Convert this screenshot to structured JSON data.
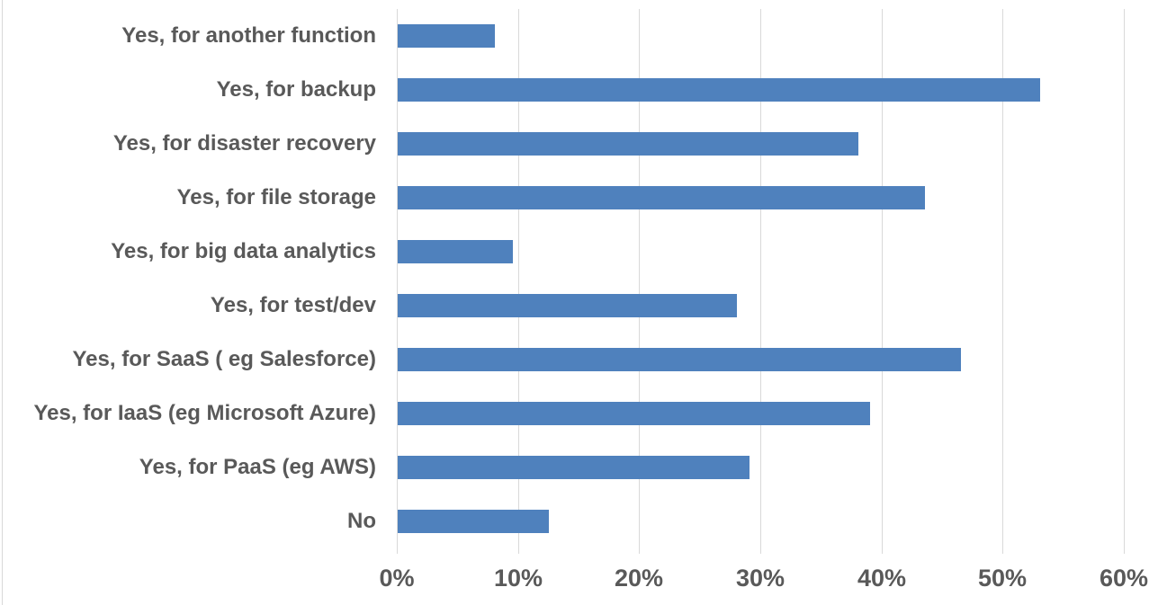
{
  "chart_data": {
    "type": "bar",
    "orientation": "horizontal",
    "title": "",
    "xlabel": "",
    "ylabel": "",
    "categories": [
      "Yes, for another function",
      "Yes, for backup",
      "Yes, for disaster recovery",
      "Yes, for file storage",
      "Yes, for big data analytics",
      "Yes, for test/dev",
      "Yes, for SaaS ( eg Salesforce)",
      "Yes, for IaaS (eg Microsoft Azure)",
      "Yes, for PaaS (eg AWS)",
      "No"
    ],
    "values": [
      8,
      53,
      38,
      43.5,
      9.5,
      28,
      46.5,
      39,
      29,
      12.5
    ],
    "unit": "%",
    "xlim": [
      0,
      60
    ],
    "x_tick_labels": [
      "0%",
      "10%",
      "20%",
      "30%",
      "40%",
      "50%",
      "60%"
    ],
    "x_tick_values": [
      0,
      10,
      20,
      30,
      40,
      50,
      60
    ],
    "grid": "vertical-only",
    "legend": "none",
    "colors": {
      "bar": "#4F81BD",
      "gridline": "#D9D9D9",
      "label_text": "#595959",
      "background": "#FFFFFF"
    }
  }
}
